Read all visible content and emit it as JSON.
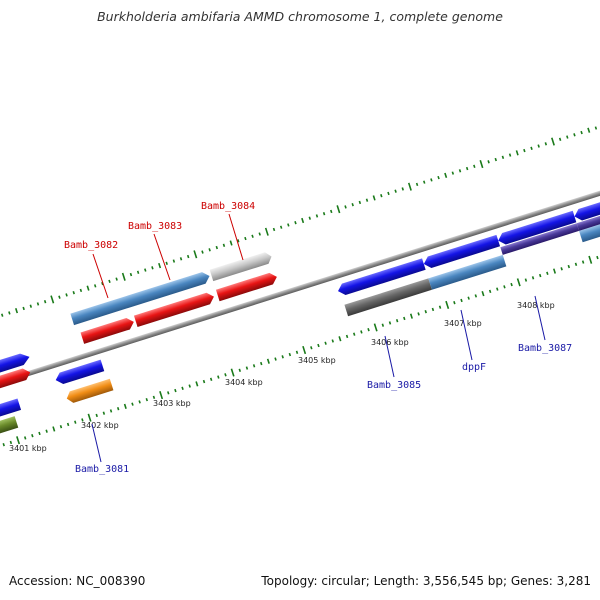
{
  "title": "Burkholderia ambifaria AMMD chromosome 1, complete genome",
  "footer": {
    "accession": "Accession: NC_008390",
    "summary": "Topology: circular; Length: 3,556,545 bp; Genes: 3,281"
  },
  "ticks": [
    "3401 kbp",
    "3402 kbp",
    "3403 kbp",
    "3404 kbp",
    "3405 kbp",
    "3406 kbp",
    "3407 kbp",
    "3408 kbp"
  ],
  "gene_labels": [
    {
      "text": "Bamb_3082",
      "color": "#cc0000"
    },
    {
      "text": "Bamb_3083",
      "color": "#cc0000"
    },
    {
      "text": "Bamb_3084",
      "color": "#cc0000"
    },
    {
      "text": "Bamb_3081",
      "color": "#1a1aa6"
    },
    {
      "text": "Bamb_3085",
      "color": "#1a1aa6"
    },
    {
      "text": "dppF",
      "color": "#1a1aa6"
    },
    {
      "text": "Bamb_3087",
      "color": "#1a1aa6"
    }
  ],
  "colors": {
    "tick_green": "#1a7a1a",
    "backbone": "#8c8c8c",
    "blue_gene": "#1414e6",
    "red_gene": "#e81414",
    "steel_gene": "#4a86c0",
    "gray_gene": "#666666",
    "light_gene": "#c8c8c8",
    "orange_gene": "#f08c14",
    "olive_gene": "#6a8a2a",
    "purple_gene": "#4a3a9a"
  }
}
